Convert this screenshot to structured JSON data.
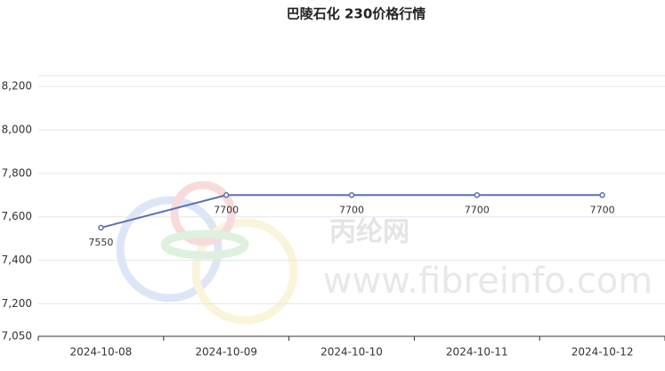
{
  "chart_data": {
    "type": "line",
    "title": "巴陵石化 230价格行情",
    "categories": [
      "2024-10-08",
      "2024-10-09",
      "2024-10-10",
      "2024-10-11",
      "2024-10-12"
    ],
    "series": [
      {
        "name": "230",
        "color": "#5b6fb5",
        "values": [
          7550,
          7700,
          7700,
          7700,
          7700
        ]
      }
    ],
    "ylim": [
      7050,
      8250
    ],
    "yticks": [
      {
        "value": 7050,
        "label": "7,050"
      },
      {
        "value": 7200,
        "label": "7,200"
      },
      {
        "value": 7400,
        "label": "7,400"
      },
      {
        "value": 7600,
        "label": "7,600"
      },
      {
        "value": 7800,
        "label": "7,800"
      },
      {
        "value": 8000,
        "label": "8,000"
      },
      {
        "value": 8200,
        "label": "8,200"
      }
    ],
    "grid": true,
    "watermark": [
      "丙纶网",
      "www.fibreinfo.com"
    ]
  }
}
